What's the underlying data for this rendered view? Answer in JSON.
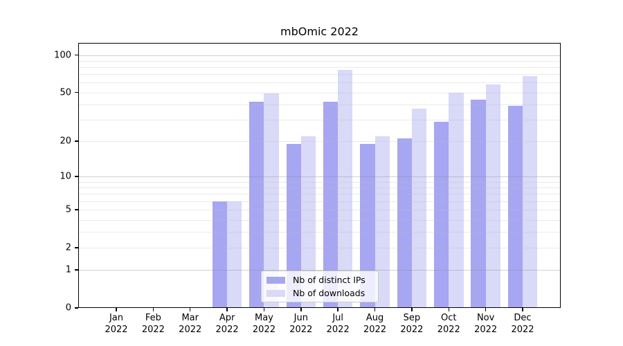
{
  "chart_data": {
    "type": "bar",
    "title": "mbOmic 2022",
    "categories": [
      {
        "month": "Jan",
        "year": "2022"
      },
      {
        "month": "Feb",
        "year": "2022"
      },
      {
        "month": "Mar",
        "year": "2022"
      },
      {
        "month": "Apr",
        "year": "2022"
      },
      {
        "month": "May",
        "year": "2022"
      },
      {
        "month": "Jun",
        "year": "2022"
      },
      {
        "month": "Jul",
        "year": "2022"
      },
      {
        "month": "Aug",
        "year": "2022"
      },
      {
        "month": "Sep",
        "year": "2022"
      },
      {
        "month": "Oct",
        "year": "2022"
      },
      {
        "month": "Nov",
        "year": "2022"
      },
      {
        "month": "Dec",
        "year": "2022"
      }
    ],
    "series": [
      {
        "name": "Nb of distinct IPs",
        "color": "#a6a6f2",
        "values": [
          0,
          0,
          0,
          6,
          42,
          19,
          42,
          19,
          21,
          29,
          44,
          39
        ]
      },
      {
        "name": "Nb of downloads",
        "color": "#d9d9f8",
        "values": [
          0,
          0,
          0,
          6,
          49,
          22,
          76,
          22,
          37,
          50,
          58,
          68
        ]
      }
    ],
    "yscale": "log1p",
    "ylim": [
      0,
      125
    ],
    "ytick_values": [
      100,
      50,
      20,
      10,
      5,
      2,
      1,
      0
    ],
    "ytick_labels": [
      "100",
      "50",
      "20",
      "10",
      "5",
      "2",
      "1",
      "0"
    ],
    "minor_grid_values": [
      2,
      3,
      4,
      5,
      6,
      7,
      8,
      9,
      20,
      30,
      40,
      50,
      60,
      70,
      80,
      90
    ],
    "major_grid_values": [
      1,
      10,
      100
    ],
    "grid": true,
    "legend_position": "lower center",
    "colors": {
      "spine": "#000000",
      "text": "#000000",
      "grid_minor": "rgba(190,190,190,0.32)",
      "grid_major": "rgba(140,140,140,0.40)",
      "legend_border": "#cccccc",
      "legend_bg": "rgba(255,255,255,0.8)"
    }
  }
}
